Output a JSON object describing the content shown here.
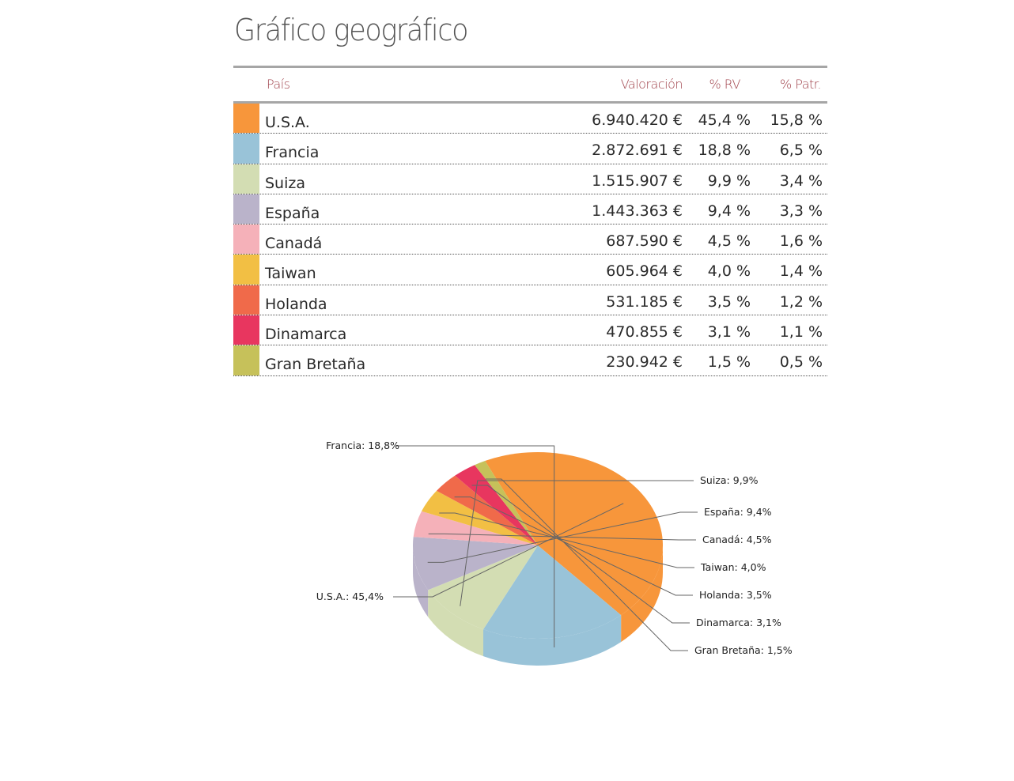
{
  "page": {
    "title": "Gráfico geográfico"
  },
  "table": {
    "headers": {
      "country": "País",
      "value": "Valoración",
      "rv": "% RV",
      "patr": "% Patr."
    },
    "rows": [
      {
        "country": "U.S.A.",
        "value": "6.940.420 €",
        "rv": "45,4 %",
        "patr": "15,8 %",
        "color": "#f7963b"
      },
      {
        "country": "Francia",
        "value": "2.872.691 €",
        "rv": "18,8 %",
        "patr": "6,5 %",
        "color": "#99c3d8"
      },
      {
        "country": "Suiza",
        "value": "1.515.907 €",
        "rv": "9,9 %",
        "patr": "3,4 %",
        "color": "#d3ddb3"
      },
      {
        "country": "España",
        "value": "1.443.363 €",
        "rv": "9,4 %",
        "patr": "3,3 %",
        "color": "#bab3ca"
      },
      {
        "country": "Canadá",
        "value": "687.590 €",
        "rv": "4,5 %",
        "patr": "1,6 %",
        "color": "#f5b1b9"
      },
      {
        "country": "Taiwan",
        "value": "605.964 €",
        "rv": "4,0 %",
        "patr": "1,4 %",
        "color": "#f2bf44"
      },
      {
        "country": "Holanda",
        "value": "531.185 €",
        "rv": "3,5 %",
        "patr": "1,2 %",
        "color": "#f06a4a"
      },
      {
        "country": "Dinamarca",
        "value": "470.855 €",
        "rv": "3,1 %",
        "patr": "1,1 %",
        "color": "#e8365f"
      },
      {
        "country": "Gran Bretaña",
        "value": "230.942 €",
        "rv": "1,5 %",
        "patr": "0,5 %",
        "color": "#c6c15a"
      }
    ]
  },
  "chart_data": {
    "type": "pie",
    "title": "",
    "categories": [
      "U.S.A.",
      "Francia",
      "Suiza",
      "España",
      "Canadá",
      "Taiwan",
      "Holanda",
      "Dinamarca",
      "Gran Bretaña"
    ],
    "values": [
      45.4,
      18.8,
      9.9,
      9.4,
      4.5,
      4.0,
      3.5,
      3.1,
      1.5
    ],
    "labels": [
      "U.S.A.: 45,4%",
      "Francia: 18,8%",
      "Suiza: 9,9%",
      "España: 9,4%",
      "Canadá: 4,5%",
      "Taiwan: 4,0%",
      "Holanda: 3,5%",
      "Dinamarca: 3,1%",
      "Gran Bretaña: 1,5%"
    ],
    "colors": [
      "#f7963b",
      "#99c3d8",
      "#d3ddb3",
      "#bab3ca",
      "#f5b1b9",
      "#f2bf44",
      "#f06a4a",
      "#e8365f",
      "#c6c15a"
    ],
    "legend": "none"
  }
}
